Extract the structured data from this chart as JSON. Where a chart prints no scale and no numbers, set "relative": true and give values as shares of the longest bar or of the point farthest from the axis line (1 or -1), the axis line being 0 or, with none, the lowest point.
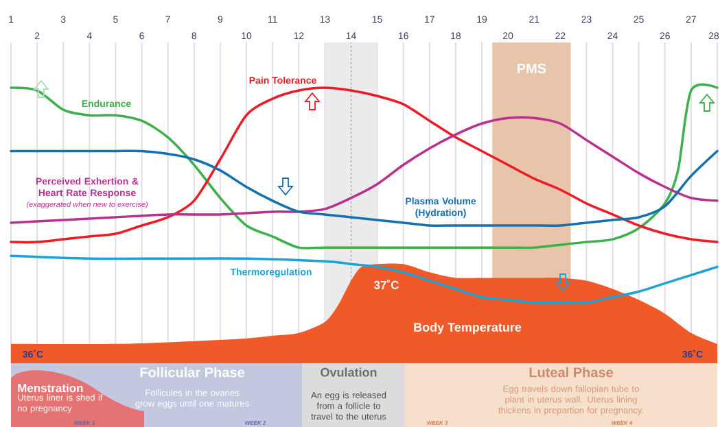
{
  "chart_data": {
    "type": "line",
    "relative": true,
    "x": [
      1,
      2,
      3,
      4,
      5,
      6,
      7,
      8,
      9,
      10,
      11,
      12,
      13,
      14,
      15,
      16,
      17,
      18,
      19,
      20,
      21,
      22,
      23,
      24,
      25,
      26,
      27,
      28
    ],
    "xlim": [
      1,
      28
    ],
    "xticks": [
      1,
      3,
      5,
      7,
      9,
      11,
      13,
      15,
      17,
      19,
      21,
      23,
      25,
      27
    ],
    "x2lim": [
      1,
      28
    ],
    "x2ticks": [
      2,
      4,
      6,
      8,
      10,
      12,
      14,
      16,
      18,
      20,
      22,
      24,
      26,
      28
    ],
    "grid": "x",
    "series": [
      {
        "name": "Endurance",
        "color": "#3cb04a",
        "x": [
          1,
          2,
          3,
          4,
          5,
          6,
          7,
          8,
          9,
          10,
          11,
          12,
          13,
          14,
          15,
          16,
          17,
          18,
          19,
          20,
          21,
          22,
          23,
          24,
          25,
          26,
          26.5,
          27,
          28
        ],
        "values": [
          1.0,
          0.99,
          0.92,
          0.9,
          0.9,
          0.88,
          0.82,
          0.72,
          0.6,
          0.5,
          0.46,
          0.42,
          0.42,
          0.42,
          0.42,
          0.42,
          0.42,
          0.42,
          0.42,
          0.42,
          0.42,
          0.43,
          0.44,
          0.45,
          0.49,
          0.58,
          0.7,
          0.99,
          1.0
        ]
      },
      {
        "name": "Pain Tolerance",
        "color": "#ed1c24",
        "values": [
          0.44,
          0.44,
          0.45,
          0.46,
          0.47,
          0.5,
          0.53,
          0.59,
          0.74,
          0.9,
          0.96,
          0.99,
          1.0,
          0.99,
          0.97,
          0.94,
          0.88,
          0.82,
          0.77,
          0.72,
          0.67,
          0.63,
          0.58,
          0.54,
          0.5,
          0.47,
          0.45,
          0.44
        ]
      },
      {
        "name": "Perceived Exhertion & Heart Rate Response",
        "color": "#b8318f",
        "x": [
          1,
          3,
          5,
          7,
          9,
          11,
          12,
          13,
          14,
          15,
          16,
          17,
          18,
          19,
          20,
          21,
          22,
          23,
          24,
          25,
          26,
          27,
          28
        ],
        "values": [
          0.51,
          0.52,
          0.53,
          0.54,
          0.54,
          0.55,
          0.55,
          0.56,
          0.6,
          0.65,
          0.72,
          0.78,
          0.83,
          0.87,
          0.89,
          0.89,
          0.87,
          0.81,
          0.75,
          0.69,
          0.64,
          0.6,
          0.59
        ]
      },
      {
        "name": "Plasma Volume (Hydration)",
        "color": "#1570ae",
        "values": [
          0.77,
          0.77,
          0.77,
          0.77,
          0.77,
          0.77,
          0.76,
          0.74,
          0.7,
          0.64,
          0.59,
          0.55,
          0.54,
          0.53,
          0.52,
          0.51,
          0.5,
          0.5,
          0.5,
          0.5,
          0.5,
          0.5,
          0.51,
          0.52,
          0.53,
          0.57,
          0.68,
          0.77
        ]
      },
      {
        "name": "Thermoregulation",
        "color": "#1aa3d6",
        "x": [
          1,
          4,
          7,
          10,
          13,
          14,
          15,
          16,
          17,
          18,
          19,
          20,
          21,
          22,
          23,
          24,
          25,
          26,
          27,
          28
        ],
        "values": [
          0.39,
          0.38,
          0.38,
          0.38,
          0.37,
          0.36,
          0.35,
          0.33,
          0.3,
          0.27,
          0.24,
          0.23,
          0.22,
          0.22,
          0.22,
          0.24,
          0.26,
          0.29,
          0.32,
          0.35
        ]
      },
      {
        "name": "Body Temperature",
        "type": "area",
        "color": "#f05a28",
        "x": [
          1,
          5,
          8,
          10,
          11,
          12,
          13,
          13.5,
          14,
          14.4,
          15,
          16,
          17,
          18,
          19,
          20,
          21,
          22,
          23,
          24,
          25,
          26,
          27,
          28
        ],
        "values": [
          0.07,
          0.07,
          0.08,
          0.09,
          0.1,
          0.11,
          0.15,
          0.21,
          0.3,
          0.35,
          0.36,
          0.36,
          0.33,
          0.31,
          0.31,
          0.31,
          0.31,
          0.31,
          0.3,
          0.27,
          0.23,
          0.18,
          0.11,
          0.07
        ]
      }
    ],
    "bands": [
      {
        "axis": "x",
        "from": 13,
        "to": 15,
        "color": "#ebebeb"
      },
      {
        "axis": "x",
        "from": 19.4,
        "to": 22.4,
        "label": "PMS",
        "color": "#e8c4ab"
      }
    ],
    "ref_lines": [
      {
        "axis": "x",
        "value": 14,
        "color": "#888888",
        "line_style": "dashed"
      }
    ],
    "annotations": [
      "(exaggerated when new to exercise)",
      "37˚C",
      "36˚C",
      "36˚C",
      "Follicular Phase",
      "Follicules in the ovaries grow eggs until one matures",
      "Menstration",
      "Uterus liner is shed if no pregnancy",
      "Ovulation",
      "An egg is released from a follicle to travel to the uterus",
      "Luteal Phase",
      "Egg travels down fallopian tube to plant in uterus wall. Uterus lining thickens in prepartion for pregnancy.",
      "WEEK 1",
      "WEEK 2",
      "WEEK 3",
      "WEEK 4"
    ]
  }
}
